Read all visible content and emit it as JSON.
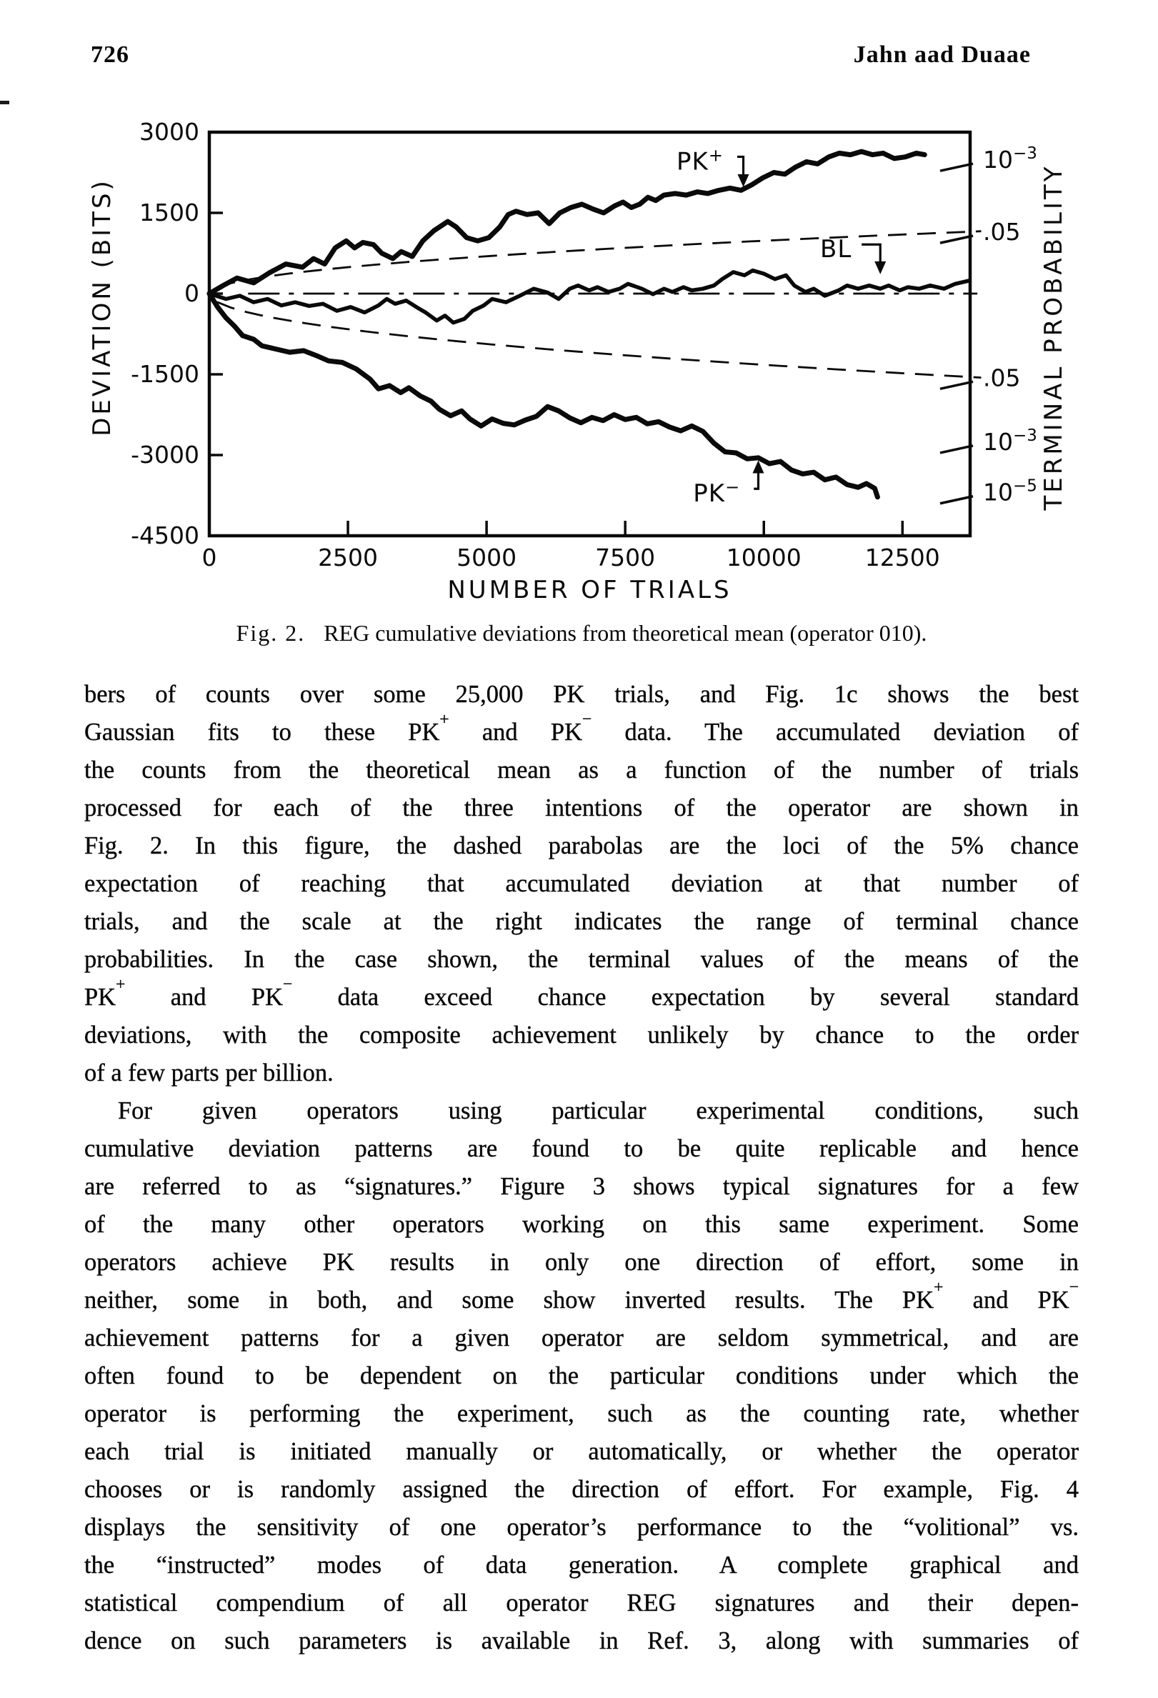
{
  "page": {
    "number": "726",
    "running_head": "Jahn aad Duaae"
  },
  "figure": {
    "caption_label": "Fig. 2.",
    "caption_text": "REG cumulative deviations from theoretical mean (operator 010).",
    "chart_data": {
      "type": "line",
      "title": "",
      "xlabel": "NUMBER OF TRIALS",
      "ylabel": "DEVIATION (BITS)",
      "y2label": "TERMINAL PROBABILITY",
      "xlim": [
        0,
        13720
      ],
      "ylim": [
        -4500,
        3000
      ],
      "xticks": [
        0,
        2500,
        5000,
        7500,
        10000,
        12500
      ],
      "yticks": [
        3000,
        1500,
        0,
        -1500,
        -3000,
        -4500
      ],
      "grid": false,
      "legend_position": "inline-annotations",
      "right_axis_entries": [
        {
          "text": "10⁻³",
          "bits": 2480
        },
        {
          "text": ".05",
          "bits": 1140
        },
        {
          "text": ".05",
          "bits": -1570
        },
        {
          "text": "10⁻³",
          "bits": -2760
        },
        {
          "text": "10⁻⁵",
          "bits": -3700
        }
      ],
      "chance_parabolas": {
        "note": "dashed loci of 5% chance expectation, bits = end_bits*sqrt(t/t_end)",
        "t_end": 13720,
        "upper_end_bits": 1150,
        "lower_end_bits": -1550
      },
      "baseline": {
        "bits": 0,
        "t_start": 700,
        "t_end": 13850
      },
      "annotations": [
        {
          "text": "PK⁺",
          "label_t": 8850,
          "label_b": 2450,
          "elbow_t": 9630,
          "tip_b": 1980,
          "dir": "down"
        },
        {
          "text": "BL",
          "label_t": 11300,
          "label_b": 820,
          "elbow_t": 12100,
          "tip_b": 360,
          "dir": "down"
        },
        {
          "text": "PK⁻",
          "label_t": 9150,
          "label_b": -3720,
          "elbow_t": 9900,
          "tip_b": -3100,
          "dir": "up"
        }
      ],
      "series": [
        {
          "name": "PK+",
          "points": [
            [
              0,
              0
            ],
            [
              250,
              150
            ],
            [
              500,
              290
            ],
            [
              800,
              200
            ],
            [
              1090,
              390
            ],
            [
              1380,
              550
            ],
            [
              1680,
              490
            ],
            [
              1880,
              650
            ],
            [
              2080,
              550
            ],
            [
              2270,
              850
            ],
            [
              2470,
              980
            ],
            [
              2620,
              850
            ],
            [
              2770,
              950
            ],
            [
              2960,
              910
            ],
            [
              3110,
              750
            ],
            [
              3310,
              650
            ],
            [
              3460,
              780
            ],
            [
              3660,
              690
            ],
            [
              3850,
              980
            ],
            [
              4050,
              1170
            ],
            [
              4300,
              1340
            ],
            [
              4450,
              1240
            ],
            [
              4640,
              1040
            ],
            [
              4840,
              980
            ],
            [
              5040,
              1040
            ],
            [
              5240,
              1240
            ],
            [
              5390,
              1470
            ],
            [
              5530,
              1530
            ],
            [
              5730,
              1470
            ],
            [
              5930,
              1500
            ],
            [
              6130,
              1300
            ],
            [
              6320,
              1500
            ],
            [
              6520,
              1600
            ],
            [
              6720,
              1660
            ],
            [
              6920,
              1570
            ],
            [
              7110,
              1500
            ],
            [
              7310,
              1630
            ],
            [
              7460,
              1700
            ],
            [
              7610,
              1600
            ],
            [
              7760,
              1660
            ],
            [
              7910,
              1790
            ],
            [
              8050,
              1730
            ],
            [
              8200,
              1830
            ],
            [
              8400,
              1860
            ],
            [
              8600,
              1830
            ],
            [
              8800,
              1890
            ],
            [
              8990,
              1860
            ],
            [
              9190,
              1920
            ],
            [
              9390,
              1960
            ],
            [
              9590,
              1920
            ],
            [
              9780,
              2020
            ],
            [
              9980,
              2150
            ],
            [
              10180,
              2250
            ],
            [
              10380,
              2220
            ],
            [
              10570,
              2350
            ],
            [
              10770,
              2450
            ],
            [
              10970,
              2410
            ],
            [
              11170,
              2540
            ],
            [
              11360,
              2610
            ],
            [
              11560,
              2580
            ],
            [
              11760,
              2640
            ],
            [
              11960,
              2580
            ],
            [
              12150,
              2610
            ],
            [
              12350,
              2510
            ],
            [
              12550,
              2540
            ],
            [
              12750,
              2610
            ],
            [
              12900,
              2580
            ]
          ]
        },
        {
          "name": "BL",
          "points": [
            [
              0,
              0
            ],
            [
              300,
              -100
            ],
            [
              550,
              -40
            ],
            [
              800,
              -160
            ],
            [
              1050,
              -100
            ],
            [
              1300,
              -220
            ],
            [
              1550,
              -160
            ],
            [
              1800,
              -230
            ],
            [
              2050,
              -190
            ],
            [
              2300,
              -320
            ],
            [
              2550,
              -250
            ],
            [
              2800,
              -350
            ],
            [
              3050,
              -220
            ],
            [
              3200,
              -100
            ],
            [
              3350,
              -190
            ],
            [
              3550,
              -130
            ],
            [
              3750,
              -260
            ],
            [
              3900,
              -350
            ],
            [
              4100,
              -500
            ],
            [
              4250,
              -410
            ],
            [
              4400,
              -540
            ],
            [
              4600,
              -470
            ],
            [
              4750,
              -320
            ],
            [
              4950,
              -220
            ],
            [
              5100,
              -100
            ],
            [
              5350,
              -160
            ],
            [
              5600,
              -40
            ],
            [
              5850,
              90
            ],
            [
              6100,
              20
            ],
            [
              6300,
              -100
            ],
            [
              6500,
              90
            ],
            [
              6650,
              150
            ],
            [
              6850,
              60
            ],
            [
              7000,
              120
            ],
            [
              7200,
              30
            ],
            [
              7400,
              90
            ],
            [
              7550,
              180
            ],
            [
              7800,
              90
            ],
            [
              8000,
              -10
            ],
            [
              8200,
              90
            ],
            [
              8350,
              30
            ],
            [
              8550,
              120
            ],
            [
              8700,
              60
            ],
            [
              8900,
              90
            ],
            [
              9100,
              150
            ],
            [
              9250,
              270
            ],
            [
              9450,
              400
            ],
            [
              9650,
              340
            ],
            [
              9800,
              430
            ],
            [
              10000,
              370
            ],
            [
              10200,
              270
            ],
            [
              10400,
              340
            ],
            [
              10550,
              150
            ],
            [
              10750,
              30
            ],
            [
              10900,
              90
            ],
            [
              11100,
              -40
            ],
            [
              11350,
              60
            ],
            [
              11500,
              150
            ],
            [
              11700,
              90
            ],
            [
              11900,
              150
            ],
            [
              12100,
              90
            ],
            [
              12250,
              150
            ],
            [
              12450,
              60
            ],
            [
              12600,
              120
            ],
            [
              12800,
              90
            ],
            [
              13000,
              150
            ],
            [
              13250,
              90
            ],
            [
              13450,
              180
            ],
            [
              13700,
              240
            ]
          ]
        },
        {
          "name": "PK−",
          "points": [
            [
              0,
              0
            ],
            [
              150,
              -250
            ],
            [
              300,
              -450
            ],
            [
              450,
              -600
            ],
            [
              600,
              -780
            ],
            [
              800,
              -850
            ],
            [
              950,
              -970
            ],
            [
              1200,
              -1030
            ],
            [
              1450,
              -1090
            ],
            [
              1700,
              -1060
            ],
            [
              1950,
              -1160
            ],
            [
              2150,
              -1250
            ],
            [
              2400,
              -1280
            ],
            [
              2650,
              -1400
            ],
            [
              2900,
              -1590
            ],
            [
              3050,
              -1770
            ],
            [
              3250,
              -1710
            ],
            [
              3450,
              -1840
            ],
            [
              3600,
              -1750
            ],
            [
              3800,
              -1900
            ],
            [
              4000,
              -2000
            ],
            [
              4150,
              -2150
            ],
            [
              4350,
              -2270
            ],
            [
              4550,
              -2180
            ],
            [
              4700,
              -2330
            ],
            [
              4900,
              -2460
            ],
            [
              5100,
              -2330
            ],
            [
              5300,
              -2410
            ],
            [
              5500,
              -2440
            ],
            [
              5700,
              -2350
            ],
            [
              5900,
              -2280
            ],
            [
              6100,
              -2100
            ],
            [
              6300,
              -2180
            ],
            [
              6500,
              -2310
            ],
            [
              6700,
              -2400
            ],
            [
              6900,
              -2300
            ],
            [
              7100,
              -2360
            ],
            [
              7300,
              -2250
            ],
            [
              7500,
              -2340
            ],
            [
              7700,
              -2300
            ],
            [
              7900,
              -2420
            ],
            [
              8100,
              -2380
            ],
            [
              8300,
              -2480
            ],
            [
              8500,
              -2550
            ],
            [
              8700,
              -2460
            ],
            [
              8900,
              -2560
            ],
            [
              9100,
              -2780
            ],
            [
              9300,
              -2940
            ],
            [
              9500,
              -2960
            ],
            [
              9700,
              -3070
            ],
            [
              9900,
              -3050
            ],
            [
              10100,
              -3160
            ],
            [
              10300,
              -3120
            ],
            [
              10500,
              -3280
            ],
            [
              10700,
              -3350
            ],
            [
              10900,
              -3320
            ],
            [
              11100,
              -3460
            ],
            [
              11300,
              -3410
            ],
            [
              11500,
              -3550
            ],
            [
              11700,
              -3600
            ],
            [
              11850,
              -3530
            ],
            [
              12000,
              -3620
            ],
            [
              12050,
              -3780
            ]
          ]
        }
      ]
    }
  },
  "body": {
    "paragraphs": [
      {
        "indent_first": false,
        "ragged_last": true,
        "lines": [
          "bers of counts over some 25,000 PK trials, and Fig. 1c shows the best",
          "Gaussian fits to these PK⁺ and PK⁻ data. The accumulated deviation of",
          "the counts from the theoretical mean as a function of the number of trials",
          "processed for each of the three intentions of the operator are shown in",
          "Fig. 2. In this figure, the dashed parabolas are the loci of the 5% chance",
          "expectation of reaching that accumulated deviation at that number of",
          "trials, and the scale at the right indicates the range of terminal chance",
          "probabilities. In the case shown, the terminal values of the means of the",
          "PK⁺ and PK⁻ data exceed chance expectation by several standard",
          "deviations, with the composite achievement unlikely by chance to the order",
          "of a few parts per billion."
        ]
      },
      {
        "indent_first": true,
        "ragged_last": false,
        "lines": [
          "For given operators using particular experimental conditions, such",
          "cumulative deviation patterns are found to be quite replicable and hence",
          "are referred to as “signatures.” Figure 3 shows typical signatures for a few",
          "of the many other operators working on this same experiment. Some",
          "operators achieve PK results in only one direction of effort, some in",
          "neither, some in both, and some show inverted results. The PK⁺ and PK⁻",
          "achievement patterns for a given operator are seldom symmetrical, and are",
          "often found to be dependent on the particular conditions under which the",
          "operator is performing the experiment, such as the counting rate, whether",
          "each trial is initiated manually or automatically, or whether the operator",
          "chooses or is randomly assigned the direction of effort. For example, Fig. 4",
          "displays the sensitivity of one operator’s performance to the “volitional” vs.",
          "the “instructed” modes of data generation. A complete graphical and",
          "statistical compendium of all operator REG signatures and their depen-",
          "dence on such parameters is available in Ref. 3, along with summaries of"
        ]
      }
    ]
  }
}
